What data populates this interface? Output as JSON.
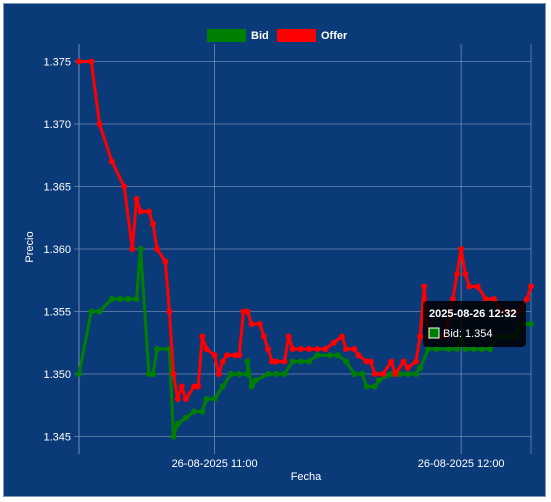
{
  "chart_data": {
    "type": "line",
    "xlabel": "Fecha",
    "ylabel": "Precio",
    "ylim": [
      1.344,
      1.376
    ],
    "yticks": [
      1.345,
      1.35,
      1.355,
      1.36,
      1.365,
      1.37,
      1.375
    ],
    "ytick_labels": [
      "1.345",
      "1.350",
      "1.355",
      "1.360",
      "1.365",
      "1.370",
      "1.375"
    ],
    "xlim": [
      "2025-08-26 10:27",
      "2025-08-26 12:17"
    ],
    "xticks": [
      "2025-08-26 11:00",
      "2025-08-26 12:00"
    ],
    "xtick_labels": [
      "26-08-2025 11:00",
      "26-08-2025 12:00"
    ],
    "grid": true,
    "legend": "top-center",
    "colors": {
      "background": "#0b3a78",
      "grid": "#8fa3c6",
      "bid": "#008000",
      "offer": "#ff0000"
    },
    "series": [
      {
        "name": "Bid",
        "color": "#008000",
        "points": [
          [
            "2025-08-26 10:27",
            1.35
          ],
          [
            "2025-08-26 10:30",
            1.355
          ],
          [
            "2025-08-26 10:32",
            1.355
          ],
          [
            "2025-08-26 10:35",
            1.356
          ],
          [
            "2025-08-26 10:37",
            1.356
          ],
          [
            "2025-08-26 10:39",
            1.356
          ],
          [
            "2025-08-26 10:41",
            1.356
          ],
          [
            "2025-08-26 10:42",
            1.36
          ],
          [
            "2025-08-26 10:44",
            1.35
          ],
          [
            "2025-08-26 10:45",
            1.35
          ],
          [
            "2025-08-26 10:46",
            1.352
          ],
          [
            "2025-08-26 10:49",
            1.352
          ],
          [
            "2025-08-26 10:50",
            1.345
          ],
          [
            "2025-08-26 10:51",
            1.346
          ],
          [
            "2025-08-26 10:53",
            1.3465
          ],
          [
            "2025-08-26 10:55",
            1.347
          ],
          [
            "2025-08-26 10:57",
            1.347
          ],
          [
            "2025-08-26 10:58",
            1.348
          ],
          [
            "2025-08-26 11:00",
            1.348
          ],
          [
            "2025-08-26 11:02",
            1.349
          ],
          [
            "2025-08-26 11:04",
            1.35
          ],
          [
            "2025-08-26 11:06",
            1.35
          ],
          [
            "2025-08-26 11:08",
            1.35
          ],
          [
            "2025-08-26 11:08",
            1.351
          ],
          [
            "2025-08-26 11:09",
            1.349
          ],
          [
            "2025-08-26 11:10",
            1.3495
          ],
          [
            "2025-08-26 11:13",
            1.35
          ],
          [
            "2025-08-26 11:15",
            1.35
          ],
          [
            "2025-08-26 11:17",
            1.35
          ],
          [
            "2025-08-26 11:19",
            1.351
          ],
          [
            "2025-08-26 11:21",
            1.351
          ],
          [
            "2025-08-26 11:23",
            1.351
          ],
          [
            "2025-08-26 11:25",
            1.3515
          ],
          [
            "2025-08-26 11:28",
            1.3515
          ],
          [
            "2025-08-26 11:30",
            1.3515
          ],
          [
            "2025-08-26 11:32",
            1.351
          ],
          [
            "2025-08-26 11:34",
            1.35
          ],
          [
            "2025-08-26 11:36",
            1.35
          ],
          [
            "2025-08-26 11:37",
            1.349
          ],
          [
            "2025-08-26 11:39",
            1.349
          ],
          [
            "2025-08-26 11:40",
            1.3495
          ],
          [
            "2025-08-26 11:43",
            1.35
          ],
          [
            "2025-08-26 11:45",
            1.35
          ],
          [
            "2025-08-26 11:47",
            1.35
          ],
          [
            "2025-08-26 11:49",
            1.35
          ],
          [
            "2025-08-26 11:50",
            1.3505
          ],
          [
            "2025-08-26 11:52",
            1.352
          ],
          [
            "2025-08-26 11:54",
            1.352
          ],
          [
            "2025-08-26 11:57",
            1.352
          ],
          [
            "2025-08-26 11:59",
            1.352
          ],
          [
            "2025-08-26 12:00",
            1.353
          ],
          [
            "2025-08-26 12:01",
            1.352
          ],
          [
            "2025-08-26 12:03",
            1.352
          ],
          [
            "2025-08-26 12:05",
            1.352
          ],
          [
            "2025-08-26 12:07",
            1.352
          ],
          [
            "2025-08-26 12:09",
            1.353
          ],
          [
            "2025-08-26 12:11",
            1.353
          ],
          [
            "2025-08-26 12:13",
            1.353
          ],
          [
            "2025-08-26 12:15",
            1.354
          ],
          [
            "2025-08-26 12:17",
            1.354
          ]
        ]
      },
      {
        "name": "Offer",
        "color": "#ff0000",
        "points": [
          [
            "2025-08-26 10:27",
            1.375
          ],
          [
            "2025-08-26 10:30",
            1.375
          ],
          [
            "2025-08-26 10:32",
            1.37
          ],
          [
            "2025-08-26 10:35",
            1.367
          ],
          [
            "2025-08-26 10:38",
            1.365
          ],
          [
            "2025-08-26 10:40",
            1.36
          ],
          [
            "2025-08-26 10:41",
            1.364
          ],
          [
            "2025-08-26 10:42",
            1.363
          ],
          [
            "2025-08-26 10:44",
            1.363
          ],
          [
            "2025-08-26 10:45",
            1.362
          ],
          [
            "2025-08-26 10:46",
            1.36
          ],
          [
            "2025-08-26 10:48",
            1.359
          ],
          [
            "2025-08-26 10:49",
            1.355
          ],
          [
            "2025-08-26 10:50",
            1.35
          ],
          [
            "2025-08-26 10:51",
            1.348
          ],
          [
            "2025-08-26 10:52",
            1.349
          ],
          [
            "2025-08-26 10:53",
            1.348
          ],
          [
            "2025-08-26 10:55",
            1.349
          ],
          [
            "2025-08-26 10:56",
            1.349
          ],
          [
            "2025-08-26 10:57",
            1.353
          ],
          [
            "2025-08-26 10:58",
            1.352
          ],
          [
            "2025-08-26 11:00",
            1.3515
          ],
          [
            "2025-08-26 11:01",
            1.35
          ],
          [
            "2025-08-26 11:02",
            1.351
          ],
          [
            "2025-08-26 11:03",
            1.3515
          ],
          [
            "2025-08-26 11:05",
            1.3515
          ],
          [
            "2025-08-26 11:06",
            1.3515
          ],
          [
            "2025-08-26 11:07",
            1.355
          ],
          [
            "2025-08-26 11:08",
            1.355
          ],
          [
            "2025-08-26 11:09",
            1.354
          ],
          [
            "2025-08-26 11:11",
            1.354
          ],
          [
            "2025-08-26 11:12",
            1.353
          ],
          [
            "2025-08-26 11:13",
            1.352
          ],
          [
            "2025-08-26 11:14",
            1.351
          ],
          [
            "2025-08-26 11:15",
            1.351
          ],
          [
            "2025-08-26 11:17",
            1.351
          ],
          [
            "2025-08-26 11:18",
            1.353
          ],
          [
            "2025-08-26 11:19",
            1.352
          ],
          [
            "2025-08-26 11:21",
            1.352
          ],
          [
            "2025-08-26 11:23",
            1.352
          ],
          [
            "2025-08-26 11:25",
            1.352
          ],
          [
            "2025-08-26 11:27",
            1.352
          ],
          [
            "2025-08-26 11:29",
            1.3525
          ],
          [
            "2025-08-26 11:31",
            1.353
          ],
          [
            "2025-08-26 11:32",
            1.352
          ],
          [
            "2025-08-26 11:34",
            1.352
          ],
          [
            "2025-08-26 11:35",
            1.3515
          ],
          [
            "2025-08-26 11:37",
            1.351
          ],
          [
            "2025-08-26 11:38",
            1.351
          ],
          [
            "2025-08-26 11:39",
            1.35
          ],
          [
            "2025-08-26 11:41",
            1.35
          ],
          [
            "2025-08-26 11:43",
            1.351
          ],
          [
            "2025-08-26 11:44",
            1.35
          ],
          [
            "2025-08-26 11:46",
            1.351
          ],
          [
            "2025-08-26 11:47",
            1.3505
          ],
          [
            "2025-08-26 11:49",
            1.351
          ],
          [
            "2025-08-26 11:50",
            1.353
          ],
          [
            "2025-08-26 11:51",
            1.357
          ],
          [
            "2025-08-26 11:52",
            1.353
          ],
          [
            "2025-08-26 11:54",
            1.353
          ],
          [
            "2025-08-26 11:56",
            1.353
          ],
          [
            "2025-08-26 11:58",
            1.356
          ],
          [
            "2025-08-26 11:59",
            1.358
          ],
          [
            "2025-08-26 12:00",
            1.36
          ],
          [
            "2025-08-26 12:01",
            1.358
          ],
          [
            "2025-08-26 12:02",
            1.357
          ],
          [
            "2025-08-26 12:04",
            1.357
          ],
          [
            "2025-08-26 12:06",
            1.356
          ],
          [
            "2025-08-26 12:08",
            1.356
          ],
          [
            "2025-08-26 12:10",
            1.355
          ],
          [
            "2025-08-26 12:12",
            1.355
          ],
          [
            "2025-08-26 12:14",
            1.355
          ],
          [
            "2025-08-26 12:16",
            1.356
          ],
          [
            "2025-08-26 12:17",
            1.357
          ]
        ]
      }
    ],
    "tooltip": {
      "title": "2025-08-26 12:32",
      "label": "Bid: 1.354",
      "series": "Bid"
    }
  }
}
